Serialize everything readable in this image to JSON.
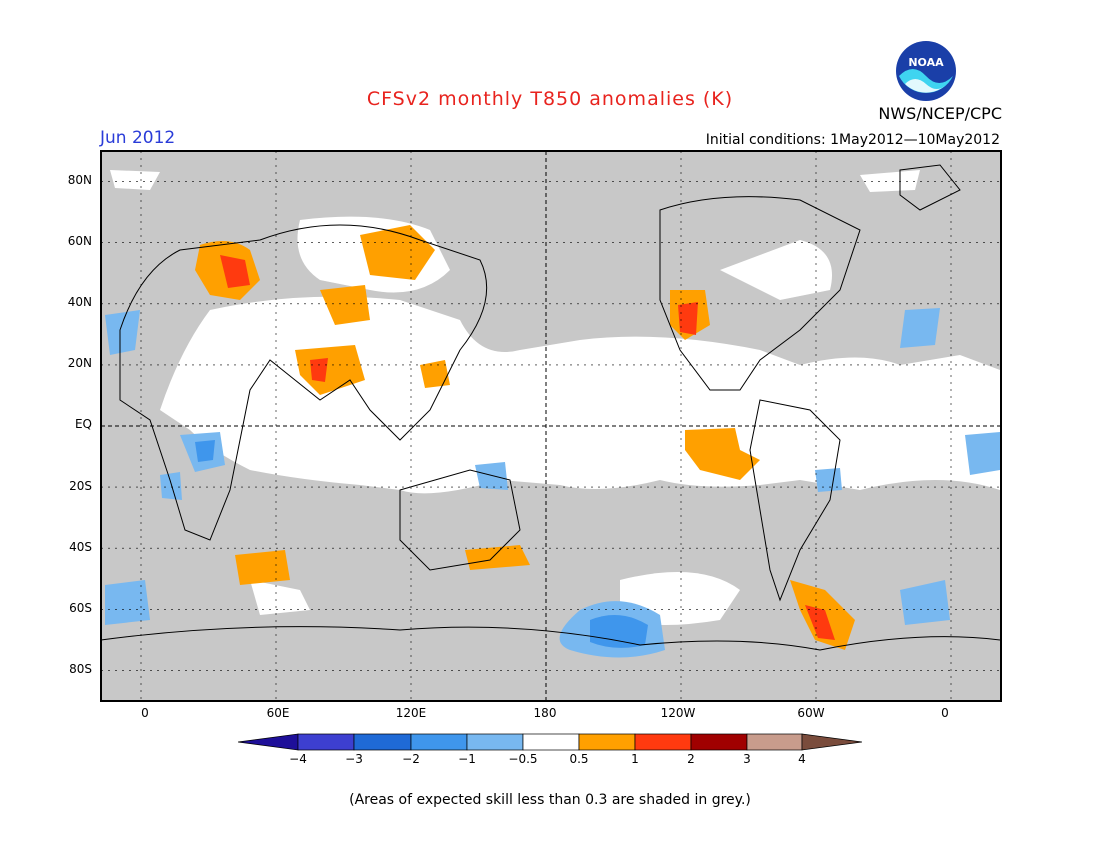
{
  "header": {
    "title": "CFSv2 monthly T850 anomalies (K)",
    "month": "Jun 2012",
    "initial_conditions": "Initial conditions: 1May2012—10May2012",
    "agency": "NWS/NCEP/CPC",
    "logo_text": "NOAA"
  },
  "axes": {
    "lat_labels": [
      "80N",
      "60N",
      "40N",
      "20N",
      "EQ",
      "20S",
      "40S",
      "60S",
      "80S"
    ],
    "lon_labels": [
      "0",
      "60E",
      "120E",
      "180",
      "120W",
      "60W",
      "0"
    ]
  },
  "colorbar": {
    "ticks": [
      "−4",
      "−3",
      "−2",
      "−1",
      "−0.5",
      "0.5",
      "1",
      "2",
      "3",
      "4"
    ],
    "colors": [
      "#1e0f99",
      "#3d3fd0",
      "#1f6ad6",
      "#3f96ec",
      "#78b8f0",
      "#ffffff",
      "#ffa000",
      "#ff3a0f",
      "#a00000",
      "#c89c8c",
      "#7a4c3c"
    ]
  },
  "footnote": "(Areas of expected skill less than 0.3 are shaded in grey.)",
  "colors": {
    "skill_grey": "#c8c8c8",
    "title_red": "#e8231e",
    "month_blue": "#2a3cd8"
  }
}
